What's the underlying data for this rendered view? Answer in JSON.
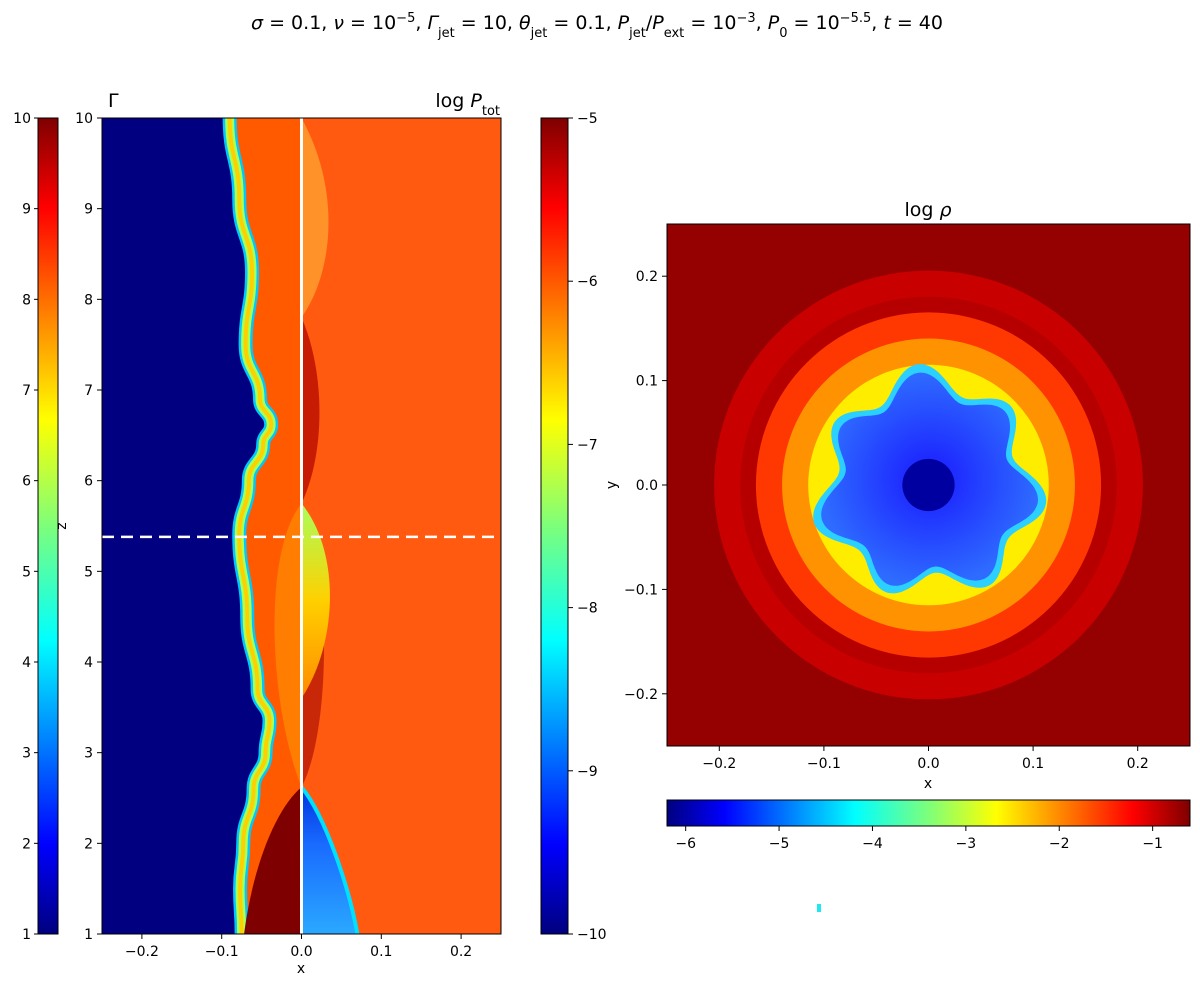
{
  "figure": {
    "suptitle_parts": [
      {
        "t": "σ"
      },
      {
        "t": " = 0.1, "
      },
      {
        "t": "ν"
      },
      {
        "t": " = 10"
      },
      {
        "t": "−5",
        "sup": true
      },
      {
        "t": ", "
      },
      {
        "t": "Γ"
      },
      {
        "t": "jet",
        "sub": true
      },
      {
        "t": " = 10, "
      },
      {
        "t": "θ"
      },
      {
        "t": "jet",
        "sub": true
      },
      {
        "t": " = 0.1, "
      },
      {
        "t": "P"
      },
      {
        "t": "jet",
        "sub": true
      },
      {
        "t": "/"
      },
      {
        "t": "P"
      },
      {
        "t": "ext",
        "sub": true
      },
      {
        "t": " = 10"
      },
      {
        "t": "−3",
        "sup": true
      },
      {
        "t": ", "
      },
      {
        "t": "P"
      },
      {
        "t": "0",
        "sub": true
      },
      {
        "t": " = 10"
      },
      {
        "t": "−5.5",
        "sup": true
      },
      {
        "t": ", "
      },
      {
        "t": "t"
      },
      {
        "t": " = 40"
      }
    ]
  },
  "chart_data": [
    {
      "type": "heatmap",
      "panel": "left-split",
      "left_half_label": "Γ",
      "right_half_title": "log P_tot",
      "right_half_title_parts": [
        {
          "t": "log "
        },
        {
          "t": "P"
        },
        {
          "t": "tot",
          "sub": true
        }
      ],
      "xlabel": "x",
      "ylabel": "z",
      "xlim": [
        -0.25,
        0.25
      ],
      "ylim": [
        1,
        10
      ],
      "x_ticks": [
        "−0.2",
        "−0.1",
        "0.0",
        "0.1",
        "0.2"
      ],
      "x_tick_values": [
        -0.2,
        -0.1,
        0.0,
        0.1,
        0.2
      ],
      "y_ticks": [
        "1",
        "2",
        "3",
        "4",
        "5",
        "6",
        "7",
        "8",
        "9",
        "10"
      ],
      "y_tick_values": [
        1,
        2,
        3,
        4,
        5,
        6,
        7,
        8,
        9,
        10
      ],
      "slice_z": 5.38,
      "jet_boundary": [
        {
          "z": 1.0,
          "x": -0.075
        },
        {
          "z": 1.5,
          "x": -0.077
        },
        {
          "z": 2.0,
          "x": -0.073
        },
        {
          "z": 2.6,
          "x": -0.06
        },
        {
          "z": 3.0,
          "x": -0.045
        },
        {
          "z": 3.35,
          "x": -0.04
        },
        {
          "z": 3.7,
          "x": -0.055
        },
        {
          "z": 4.5,
          "x": -0.068
        },
        {
          "z": 5.4,
          "x": -0.078
        },
        {
          "z": 6.0,
          "x": -0.066
        },
        {
          "z": 6.4,
          "x": -0.048
        },
        {
          "z": 6.62,
          "x": -0.038
        },
        {
          "z": 6.9,
          "x": -0.052
        },
        {
          "z": 7.5,
          "x": -0.07
        },
        {
          "z": 8.3,
          "x": -0.062
        },
        {
          "z": 9.1,
          "x": -0.078
        },
        {
          "z": 10.0,
          "x": -0.09
        }
      ],
      "shocks": [
        {
          "z": 2.62
        },
        {
          "z": 5.75
        }
      ],
      "colorbar_left": {
        "label": "Γ",
        "range": [
          1,
          10
        ],
        "ticks": [
          "1",
          "2",
          "3",
          "4",
          "5",
          "6",
          "7",
          "8",
          "9",
          "10"
        ],
        "tick_values": [
          1,
          2,
          3,
          4,
          5,
          6,
          7,
          8,
          9,
          10
        ]
      },
      "colorbar_right": {
        "label": "log P_tot",
        "range": [
          -10,
          -5
        ],
        "ticks": [
          "−10",
          "−9",
          "−8",
          "−7",
          "−6",
          "−5"
        ],
        "tick_values": [
          -10,
          -9,
          -8,
          -7,
          -6,
          -5
        ]
      }
    },
    {
      "type": "heatmap",
      "panel": "right",
      "title": "log ρ",
      "title_parts": [
        {
          "t": "log "
        },
        {
          "t": "ρ"
        }
      ],
      "xlabel": "x",
      "ylabel": "y",
      "xlim": [
        -0.25,
        0.25
      ],
      "ylim": [
        -0.25,
        0.25
      ],
      "x_ticks": [
        "−0.2",
        "−0.1",
        "0.0",
        "0.1",
        "0.2"
      ],
      "x_tick_values": [
        -0.2,
        -0.1,
        0.0,
        0.1,
        0.2
      ],
      "y_ticks": [
        "−0.2",
        "−0.1",
        "0.0",
        "0.1",
        "0.2"
      ],
      "y_tick_values": [
        -0.2,
        -0.1,
        0.0,
        0.1,
        0.2
      ],
      "rings": [
        {
          "r": 0.205,
          "level": -1.0
        },
        {
          "r": 0.18,
          "level": -0.9
        },
        {
          "r": 0.165,
          "level": -1.6
        },
        {
          "r": 0.14,
          "level": -2.1
        },
        {
          "r": 0.115,
          "level": -2.6
        }
      ],
      "core_radius": 0.1,
      "core_lobes": 7,
      "colorbar": {
        "orientation": "horizontal",
        "range": [
          -6.2,
          -0.6
        ],
        "ticks": [
          "−6",
          "−5",
          "−4",
          "−3",
          "−2",
          "−1"
        ],
        "tick_values": [
          -6,
          -5,
          -4,
          -3,
          -2,
          -1
        ]
      }
    }
  ]
}
